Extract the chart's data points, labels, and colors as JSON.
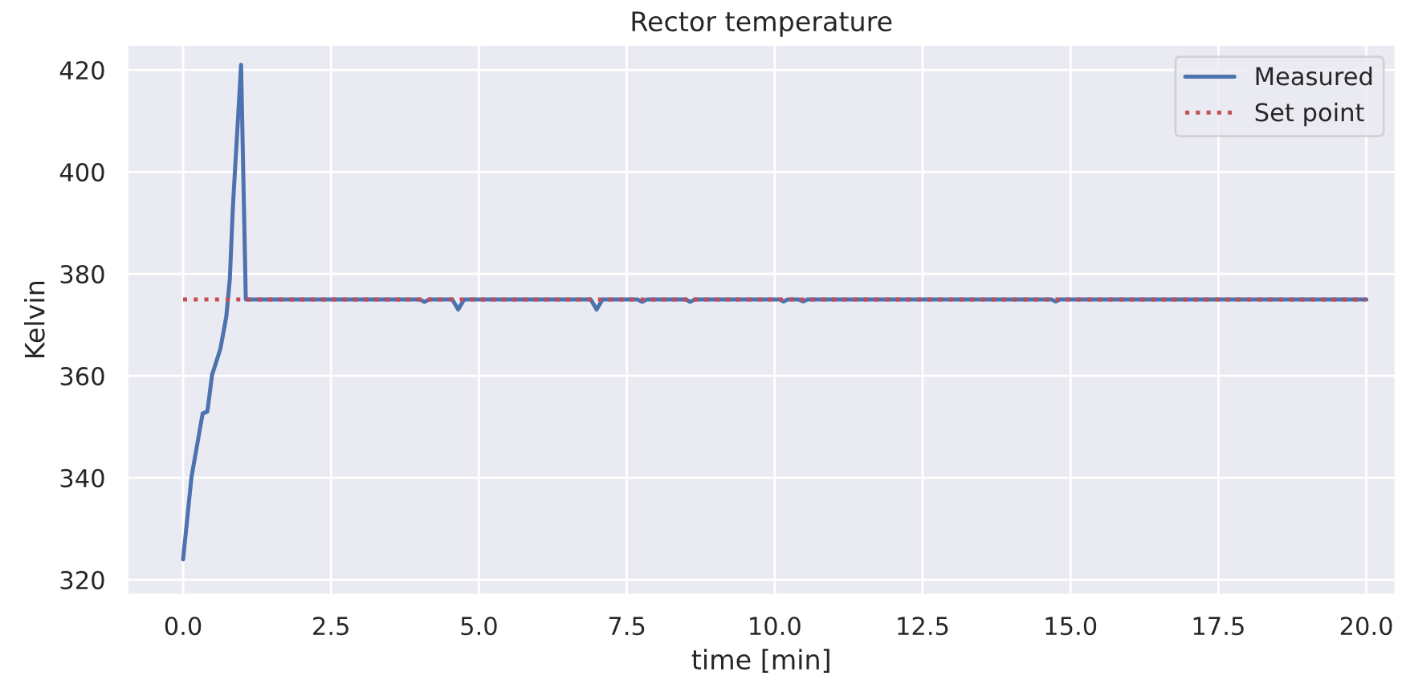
{
  "chart_data": {
    "type": "line",
    "title": "Rector temperature",
    "xlabel": "time [min]",
    "ylabel": "Kelvin",
    "xlim": [
      -0.95,
      20.5
    ],
    "ylim": [
      317,
      425
    ],
    "xticks": [
      {
        "value": 0,
        "label": "0.0"
      },
      {
        "value": 2.5,
        "label": "2.5"
      },
      {
        "value": 5,
        "label": "5.0"
      },
      {
        "value": 7.5,
        "label": "7.5"
      },
      {
        "value": 10,
        "label": "10.0"
      },
      {
        "value": 12.5,
        "label": "12.5"
      },
      {
        "value": 15,
        "label": "15.0"
      },
      {
        "value": 17.5,
        "label": "17.5"
      },
      {
        "value": 20,
        "label": "20.0"
      }
    ],
    "yticks": [
      320,
      340,
      360,
      380,
      400,
      420
    ],
    "grid": true,
    "legend": "top right",
    "series": [
      {
        "name": "Measured",
        "color": "#4c72b0",
        "line_style": "solid",
        "x": [
          0,
          0.14,
          0.33,
          0.41,
          0.49,
          0.63,
          0.73,
          0.79,
          0.84,
          0.98,
          1.06,
          4.0,
          4.08,
          4.16,
          4.55,
          4.65,
          4.75,
          6.89,
          6.99,
          7.09,
          7.68,
          7.76,
          7.84,
          8.5,
          8.57,
          8.65,
          10.08,
          10.15,
          10.22,
          10.4,
          10.48,
          10.56,
          14.68,
          14.75,
          14.82,
          20
        ],
        "values": [
          324,
          340,
          352.6,
          353,
          360.2,
          365.3,
          371.6,
          379,
          392.8,
          421,
          375,
          375,
          374.5,
          375,
          375,
          373,
          375,
          375,
          373,
          375,
          375,
          374.5,
          375,
          375,
          374.5,
          375,
          375,
          374.6,
          375,
          375,
          374.6,
          375,
          375,
          374.6,
          375,
          375
        ]
      },
      {
        "name": "Set point",
        "color": "#c44e52",
        "line_style": "dotted",
        "x": [
          0,
          20
        ],
        "values": [
          375,
          375
        ]
      }
    ]
  }
}
